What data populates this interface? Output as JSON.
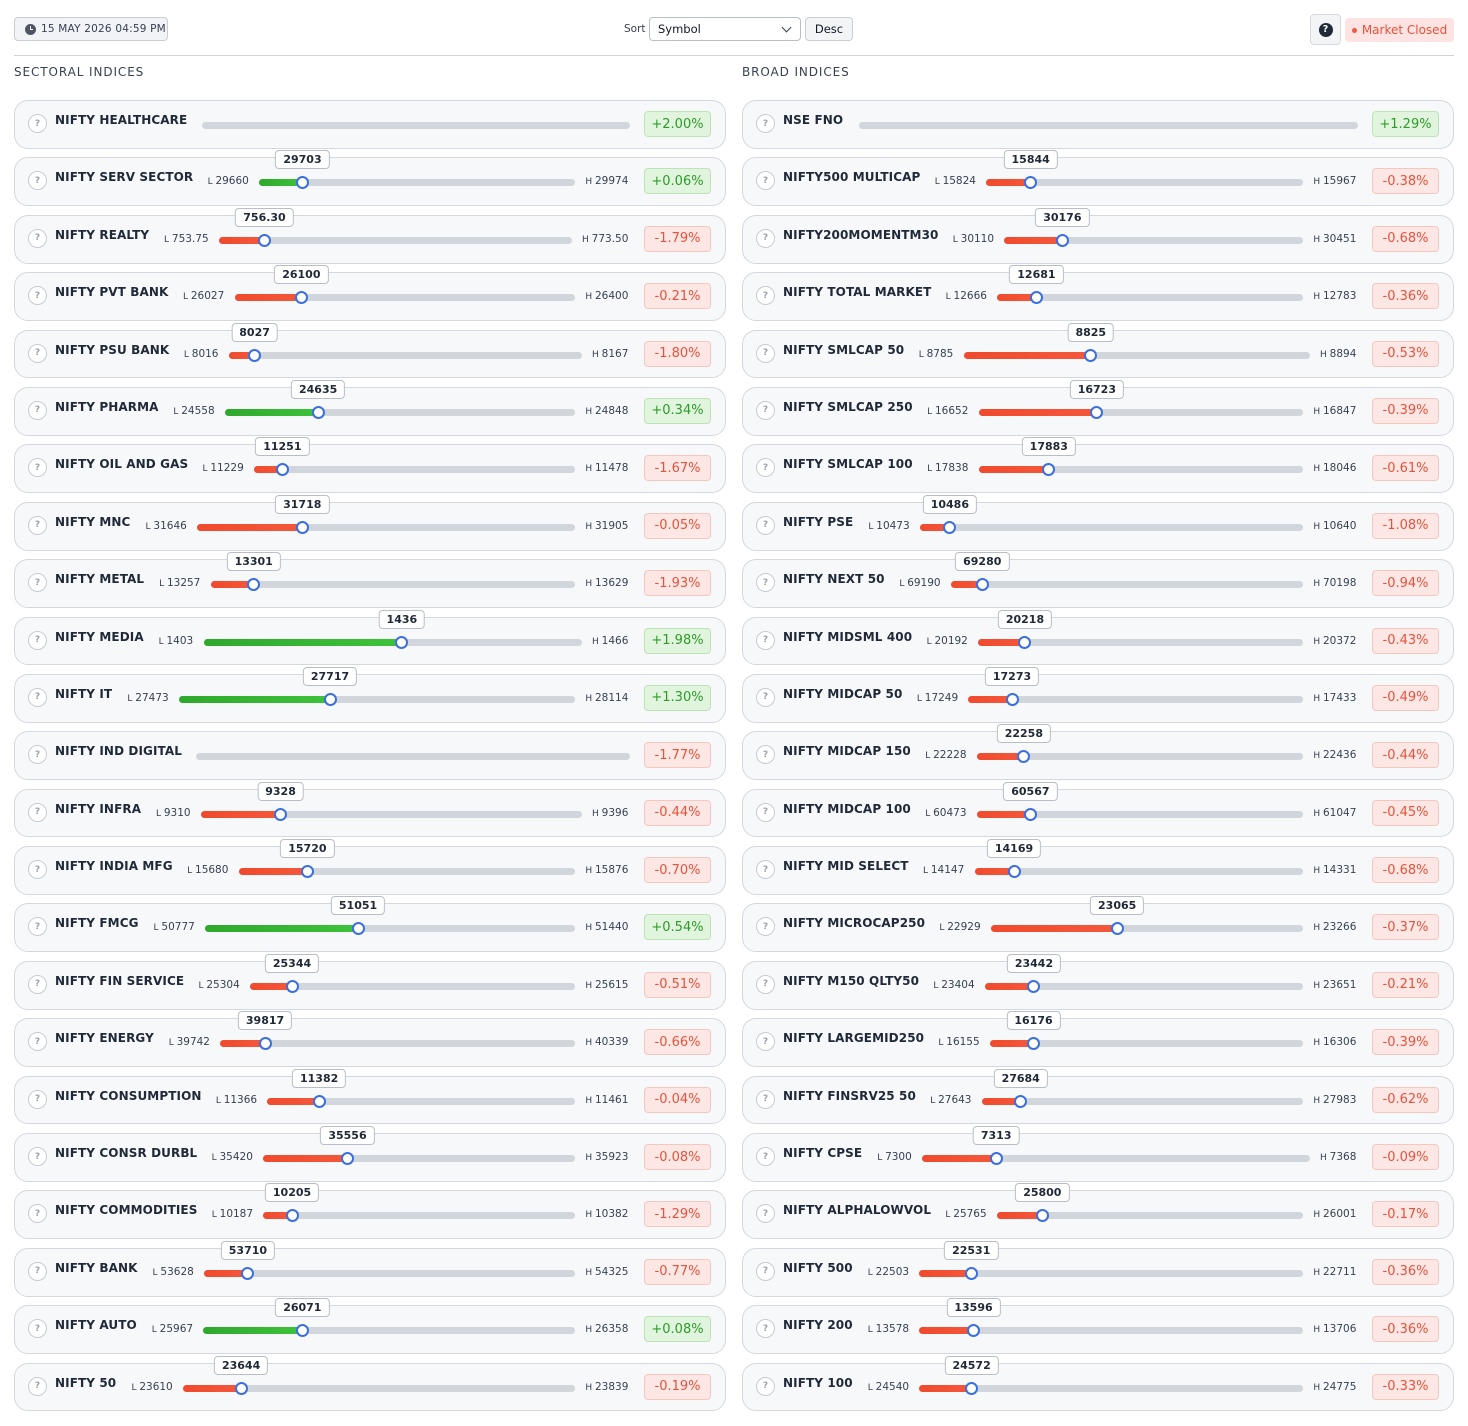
{
  "header": {
    "datetime": "15 MAY 2026 04:59 PM",
    "sort_label": "Sort",
    "sort_value": "Symbol",
    "order_label": "Desc",
    "help_label": "?",
    "market_status": "Market Closed"
  },
  "colors": {
    "negative": "#ef4a2e",
    "positive": "#2ea82c",
    "knob": "#3b6fe0"
  },
  "icons": {
    "row_info": "question-circle-icon",
    "time": "clock-icon",
    "dropdown": "chevron-down-icon"
  },
  "sectoral": {
    "title": "SECTORAL INDICES",
    "rows": [
      {
        "name": "NIFTY HEALTHCARE",
        "low": "",
        "high": "",
        "last": "",
        "change": "+2.00%",
        "pos": null,
        "dir": "pos"
      },
      {
        "name": "NIFTY SERV SECTOR",
        "low": "29660",
        "high": "29974",
        "last": "29703",
        "change": "+0.06%",
        "pos": 0.137,
        "dir": "pos"
      },
      {
        "name": "NIFTY REALTY",
        "low": "753.75",
        "high": "773.50",
        "last": "756.30",
        "change": "-1.79%",
        "pos": 0.129,
        "dir": "neg"
      },
      {
        "name": "NIFTY PVT BANK",
        "low": "26027",
        "high": "26400",
        "last": "26100",
        "change": "-0.21%",
        "pos": 0.196,
        "dir": "neg"
      },
      {
        "name": "NIFTY PSU BANK",
        "low": "8016",
        "high": "8167",
        "last": "8027",
        "change": "-1.80%",
        "pos": 0.073,
        "dir": "neg"
      },
      {
        "name": "NIFTY PHARMA",
        "low": "24558",
        "high": "24848",
        "last": "24635",
        "change": "+0.34%",
        "pos": 0.266,
        "dir": "pos"
      },
      {
        "name": "NIFTY OIL AND GAS",
        "low": "11229",
        "high": "11478",
        "last": "11251",
        "change": "-1.67%",
        "pos": 0.088,
        "dir": "neg"
      },
      {
        "name": "NIFTY MNC",
        "low": "31646",
        "high": "31905",
        "last": "31718",
        "change": "-0.05%",
        "pos": 0.278,
        "dir": "neg"
      },
      {
        "name": "NIFTY METAL",
        "low": "13257",
        "high": "13629",
        "last": "13301",
        "change": "-1.93%",
        "pos": 0.118,
        "dir": "neg"
      },
      {
        "name": "NIFTY MEDIA",
        "low": "1403",
        "high": "1466",
        "last": "1436",
        "change": "+1.98%",
        "pos": 0.524,
        "dir": "pos"
      },
      {
        "name": "NIFTY IT",
        "low": "27473",
        "high": "28114",
        "last": "27717",
        "change": "+1.30%",
        "pos": 0.381,
        "dir": "pos"
      },
      {
        "name": "NIFTY IND DIGITAL",
        "low": "",
        "high": "",
        "last": "",
        "change": "-1.77%",
        "pos": null,
        "dir": "neg"
      },
      {
        "name": "NIFTY INFRA",
        "low": "9310",
        "high": "9396",
        "last": "9328",
        "change": "-0.44%",
        "pos": 0.209,
        "dir": "neg"
      },
      {
        "name": "NIFTY INDIA MFG",
        "low": "15680",
        "high": "15876",
        "last": "15720",
        "change": "-0.70%",
        "pos": 0.204,
        "dir": "neg"
      },
      {
        "name": "NIFTY FMCG",
        "low": "50777",
        "high": "51440",
        "last": "51051",
        "change": "+0.54%",
        "pos": 0.413,
        "dir": "pos"
      },
      {
        "name": "NIFTY FIN SERVICE",
        "low": "25304",
        "high": "25615",
        "last": "25344",
        "change": "-0.51%",
        "pos": 0.129,
        "dir": "neg"
      },
      {
        "name": "NIFTY ENERGY",
        "low": "39742",
        "high": "40339",
        "last": "39817",
        "change": "-0.66%",
        "pos": 0.126,
        "dir": "neg"
      },
      {
        "name": "NIFTY CONSUMPTION",
        "low": "11366",
        "high": "11461",
        "last": "11382",
        "change": "-0.04%",
        "pos": 0.168,
        "dir": "neg"
      },
      {
        "name": "NIFTY CONSR DURBL",
        "low": "35420",
        "high": "35923",
        "last": "35556",
        "change": "-0.08%",
        "pos": 0.27,
        "dir": "neg"
      },
      {
        "name": "NIFTY COMMODITIES",
        "low": "10187",
        "high": "10382",
        "last": "10205",
        "change": "-1.29%",
        "pos": 0.092,
        "dir": "neg"
      },
      {
        "name": "NIFTY BANK",
        "low": "53628",
        "high": "54325",
        "last": "53710",
        "change": "-0.77%",
        "pos": 0.118,
        "dir": "neg"
      },
      {
        "name": "NIFTY AUTO",
        "low": "25967",
        "high": "26358",
        "last": "26071",
        "change": "+0.08%",
        "pos": 0.266,
        "dir": "pos"
      },
      {
        "name": "NIFTY 50",
        "low": "23610",
        "high": "23839",
        "last": "23644",
        "change": "-0.19%",
        "pos": 0.148,
        "dir": "neg"
      }
    ]
  },
  "broad": {
    "title": "BROAD INDICES",
    "rows": [
      {
        "name": "NSE FNO",
        "low": "",
        "high": "",
        "last": "",
        "change": "+1.29%",
        "pos": null,
        "dir": "pos"
      },
      {
        "name": "NIFTY500 MULTICAP",
        "low": "15824",
        "high": "15967",
        "last": "15844",
        "change": "-0.38%",
        "pos": 0.14,
        "dir": "neg"
      },
      {
        "name": "NIFTY200MOMENTM30",
        "low": "30110",
        "high": "30451",
        "last": "30176",
        "change": "-0.68%",
        "pos": 0.194,
        "dir": "neg"
      },
      {
        "name": "NIFTY TOTAL MARKET",
        "low": "12666",
        "high": "12783",
        "last": "12681",
        "change": "-0.36%",
        "pos": 0.128,
        "dir": "neg"
      },
      {
        "name": "NIFTY SMLCAP 50",
        "low": "8785",
        "high": "8894",
        "last": "8825",
        "change": "-0.53%",
        "pos": 0.367,
        "dir": "neg"
      },
      {
        "name": "NIFTY SMLCAP 250",
        "low": "16652",
        "high": "16847",
        "last": "16723",
        "change": "-0.39%",
        "pos": 0.364,
        "dir": "neg"
      },
      {
        "name": "NIFTY SMLCAP 100",
        "low": "17838",
        "high": "18046",
        "last": "17883",
        "change": "-0.61%",
        "pos": 0.216,
        "dir": "neg"
      },
      {
        "name": "NIFTY PSE",
        "low": "10473",
        "high": "10640",
        "last": "10486",
        "change": "-1.08%",
        "pos": 0.078,
        "dir": "neg"
      },
      {
        "name": "NIFTY NEXT 50",
        "low": "69190",
        "high": "70198",
        "last": "69280",
        "change": "-0.94%",
        "pos": 0.089,
        "dir": "neg"
      },
      {
        "name": "NIFTY MIDSML 400",
        "low": "20192",
        "high": "20372",
        "last": "20218",
        "change": "-0.43%",
        "pos": 0.144,
        "dir": "neg"
      },
      {
        "name": "NIFTY MIDCAP 50",
        "low": "17249",
        "high": "17433",
        "last": "17273",
        "change": "-0.49%",
        "pos": 0.13,
        "dir": "neg"
      },
      {
        "name": "NIFTY MIDCAP 150",
        "low": "22228",
        "high": "22436",
        "last": "22258",
        "change": "-0.44%",
        "pos": 0.144,
        "dir": "neg"
      },
      {
        "name": "NIFTY MIDCAP 100",
        "low": "60473",
        "high": "61047",
        "last": "60567",
        "change": "-0.45%",
        "pos": 0.164,
        "dir": "neg"
      },
      {
        "name": "NIFTY MID SELECT",
        "low": "14147",
        "high": "14331",
        "last": "14169",
        "change": "-0.68%",
        "pos": 0.12,
        "dir": "neg"
      },
      {
        "name": "NIFTY MICROCAP250",
        "low": "22929",
        "high": "23266",
        "last": "23065",
        "change": "-0.37%",
        "pos": 0.404,
        "dir": "neg"
      },
      {
        "name": "NIFTY M150 QLTY50",
        "low": "23404",
        "high": "23651",
        "last": "23442",
        "change": "-0.21%",
        "pos": 0.154,
        "dir": "neg"
      },
      {
        "name": "NIFTY LARGEMID250",
        "low": "16155",
        "high": "16306",
        "last": "16176",
        "change": "-0.39%",
        "pos": 0.139,
        "dir": "neg"
      },
      {
        "name": "NIFTY FINSRV25 50",
        "low": "27643",
        "high": "27983",
        "last": "27684",
        "change": "-0.62%",
        "pos": 0.121,
        "dir": "neg"
      },
      {
        "name": "NIFTY CPSE",
        "low": "7300",
        "high": "7368",
        "last": "7313",
        "change": "-0.09%",
        "pos": 0.191,
        "dir": "neg"
      },
      {
        "name": "NIFTY ALPHALOWVOL",
        "low": "25765",
        "high": "26001",
        "last": "25800",
        "change": "-0.17%",
        "pos": 0.148,
        "dir": "neg"
      },
      {
        "name": "NIFTY 500",
        "low": "22503",
        "high": "22711",
        "last": "22531",
        "change": "-0.36%",
        "pos": 0.135,
        "dir": "neg"
      },
      {
        "name": "NIFTY 200",
        "low": "13578",
        "high": "13706",
        "last": "13596",
        "change": "-0.36%",
        "pos": 0.141,
        "dir": "neg"
      },
      {
        "name": "NIFTY 100",
        "low": "24540",
        "high": "24775",
        "last": "24572",
        "change": "-0.33%",
        "pos": 0.136,
        "dir": "neg"
      }
    ]
  }
}
